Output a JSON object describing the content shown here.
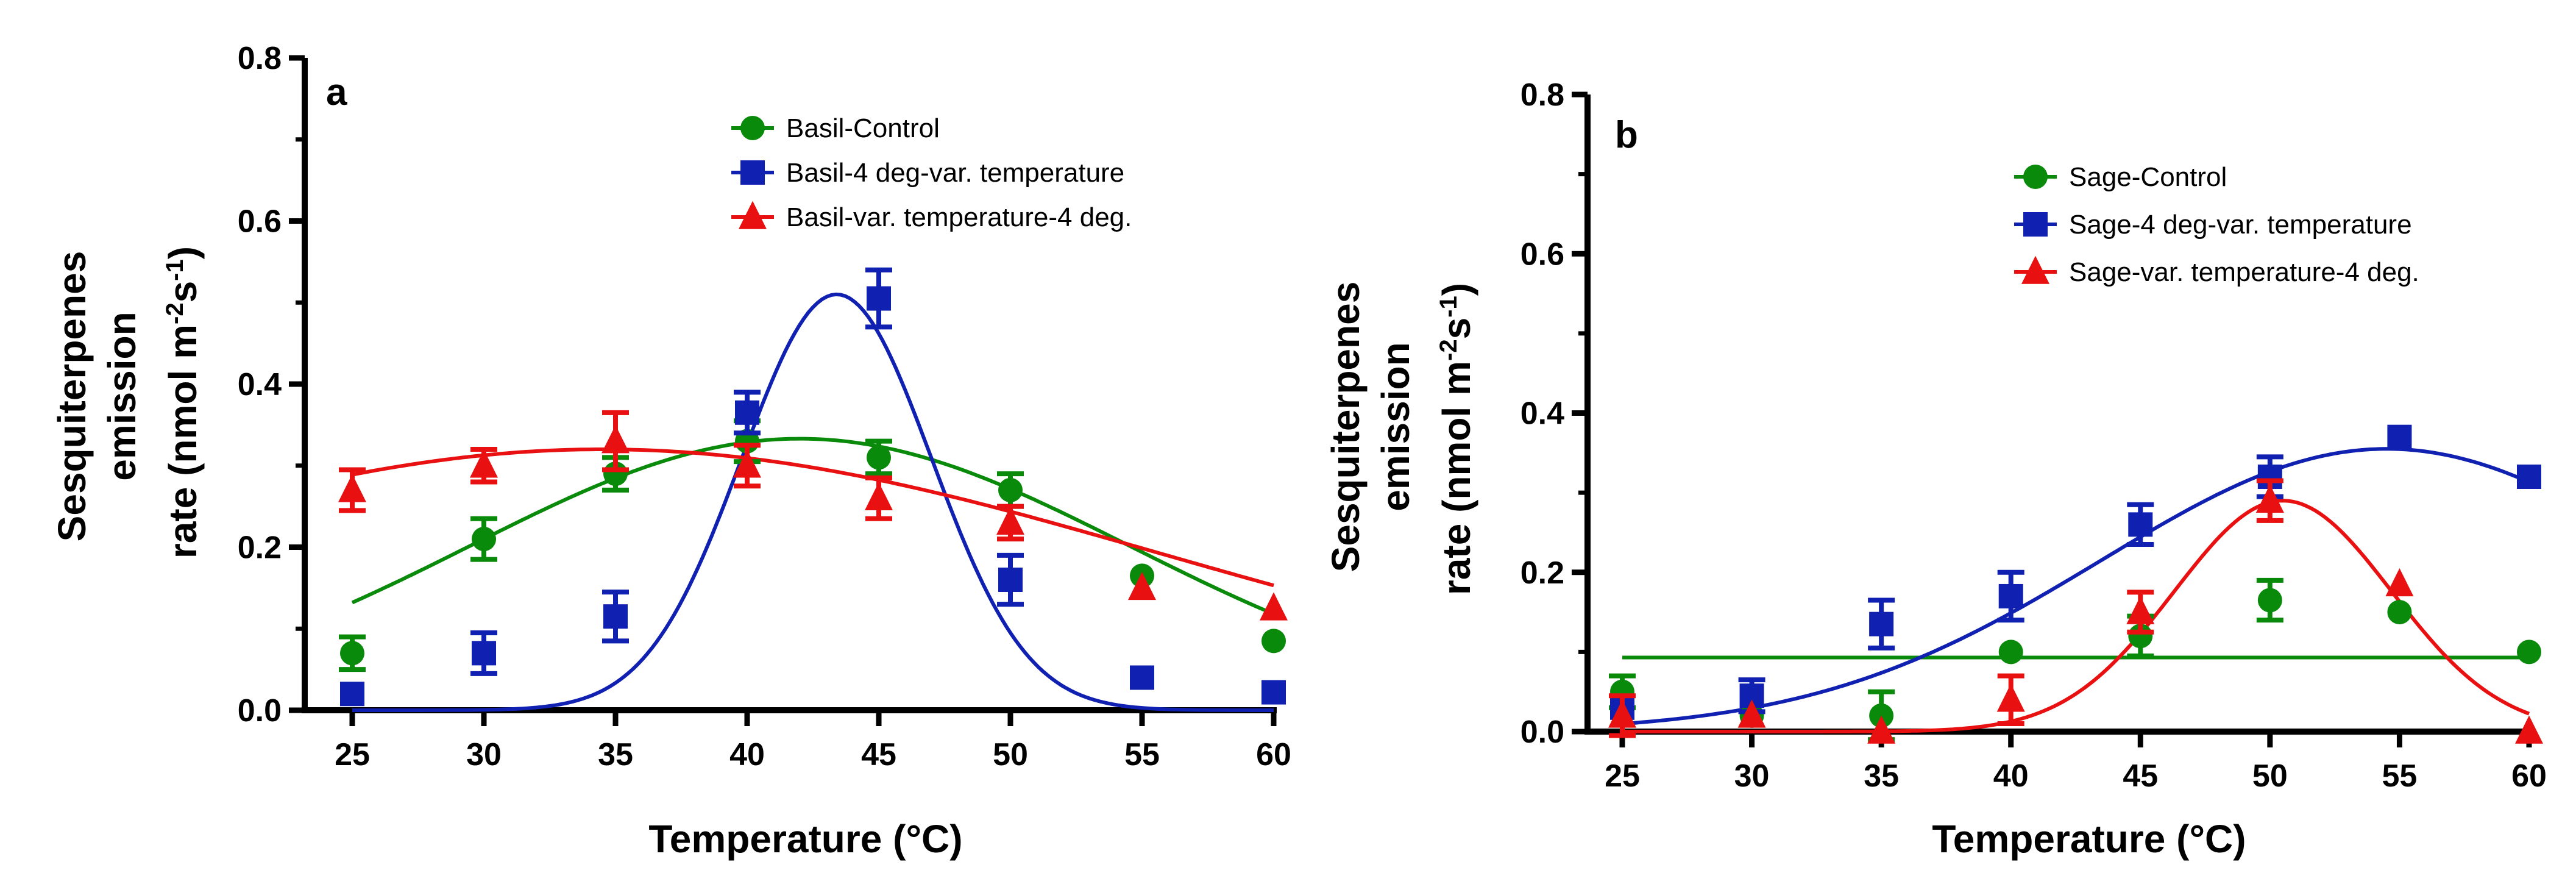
{
  "chart_data": [
    {
      "type": "scatter",
      "panel_label": "a",
      "xlabel": "Temperature (°C)",
      "ylabel_lines": [
        "Sesquiterpenes",
        "emission"
      ],
      "ylabel_rate_prefix": "rate (nmol m",
      "ylabel_sup1": "-2",
      "ylabel_mid": "s",
      "ylabel_sup2": "-1",
      "ylabel_suffix": ")",
      "xlim": [
        25,
        60
      ],
      "ylim": [
        0,
        0.8
      ],
      "xticks": [
        "25",
        "30",
        "35",
        "40",
        "45",
        "50",
        "55",
        "60"
      ],
      "yticks": [
        "0.0",
        "0.2",
        "0.4",
        "0.6",
        "0.8"
      ],
      "legend_position": "top-right",
      "series": [
        {
          "name": "Basil-Control",
          "color": "#0a8a0a",
          "marker": "circle",
          "x": [
            25,
            30,
            35,
            40,
            45,
            50,
            55,
            60
          ],
          "y": [
            0.07,
            0.21,
            0.29,
            0.33,
            0.31,
            0.27,
            0.165,
            0.085
          ],
          "err": [
            0.02,
            0.025,
            0.02,
            0.025,
            0.02,
            0.02,
            0.0,
            0.0
          ],
          "fit": {
            "kind": "gauss",
            "a": 0.333,
            "mu": 42,
            "sigma": 12.5,
            "c": 0
          }
        },
        {
          "name": "Basil-4 deg-var. temperature",
          "color": "#1020b0",
          "marker": "square",
          "x": [
            25,
            30,
            35,
            40,
            45,
            50,
            55,
            60
          ],
          "y": [
            0.02,
            0.07,
            0.115,
            0.365,
            0.505,
            0.16,
            0.04,
            0.022
          ],
          "err": [
            0.0,
            0.025,
            0.03,
            0.025,
            0.035,
            0.03,
            0.0,
            0.0
          ],
          "fit": {
            "kind": "gauss",
            "a": 0.51,
            "mu": 43.4,
            "sigma": 3.6,
            "c": 0
          }
        },
        {
          "name": "Basil-var. temperature-4 deg.",
          "color": "#e81010",
          "marker": "triangle",
          "x": [
            25,
            30,
            35,
            40,
            45,
            50,
            55,
            60
          ],
          "y": [
            0.27,
            0.3,
            0.33,
            0.3,
            0.26,
            0.23,
            0.15,
            0.125
          ],
          "err": [
            0.025,
            0.02,
            0.035,
            0.025,
            0.025,
            0.02,
            0.0,
            0.0
          ],
          "fit": {
            "kind": "gauss",
            "a": 0.32,
            "mu": 34.5,
            "sigma": 21,
            "c": 0
          }
        }
      ]
    },
    {
      "type": "scatter",
      "panel_label": "b",
      "xlabel": "Temperature (°C)",
      "ylabel_lines": [
        "Sesquiterpenes",
        "emission"
      ],
      "ylabel_rate_prefix": "rate (nmol m",
      "ylabel_sup1": "-2",
      "ylabel_mid": "s",
      "ylabel_sup2": "-1",
      "ylabel_suffix": ")",
      "xlim": [
        25,
        60
      ],
      "ylim": [
        0,
        0.8
      ],
      "xticks": [
        "25",
        "30",
        "35",
        "40",
        "45",
        "50",
        "55",
        "60"
      ],
      "yticks": [
        "0.0",
        "0.2",
        "0.4",
        "0.6",
        "0.8"
      ],
      "legend_position": "top-right",
      "series": [
        {
          "name": "Sage-Control",
          "color": "#0a8a0a",
          "marker": "circle",
          "x": [
            25,
            30,
            35,
            40,
            45,
            50,
            55,
            60
          ],
          "y": [
            0.05,
            0.02,
            0.02,
            0.1,
            0.12,
            0.165,
            0.15,
            0.1
          ],
          "err": [
            0.02,
            0.0,
            0.03,
            0.0,
            0.025,
            0.025,
            0.0,
            0.0
          ],
          "fit": {
            "kind": "flat",
            "c": 0.093
          }
        },
        {
          "name": "Sage-4 deg-var. temperature",
          "color": "#1020b0",
          "marker": "square",
          "x": [
            25,
            30,
            35,
            40,
            45,
            50,
            55,
            60
          ],
          "y": [
            0.03,
            0.045,
            0.135,
            0.17,
            0.26,
            0.32,
            0.37,
            0.32
          ],
          "err": [
            0.0,
            0.02,
            0.03,
            0.03,
            0.025,
            0.025,
            0.0,
            0.0
          ],
          "fit": {
            "kind": "gauss",
            "a": 0.355,
            "mu": 54.5,
            "sigma": 11,
            "c": 0
          }
        },
        {
          "name": "Sage-var. temperature-4 deg.",
          "color": "#e81010",
          "marker": "triangle",
          "x": [
            25,
            30,
            35,
            40,
            45,
            50,
            55,
            60
          ],
          "y": [
            0.02,
            0.02,
            0.0,
            0.04,
            0.15,
            0.29,
            0.185,
            0.0
          ],
          "err": [
            0.025,
            0.0,
            0.0,
            0.03,
            0.025,
            0.025,
            0.0,
            0.0
          ],
          "fit": {
            "kind": "gauss",
            "a": 0.29,
            "mu": 50.5,
            "sigma": 4.2,
            "c": 0
          }
        }
      ]
    }
  ]
}
